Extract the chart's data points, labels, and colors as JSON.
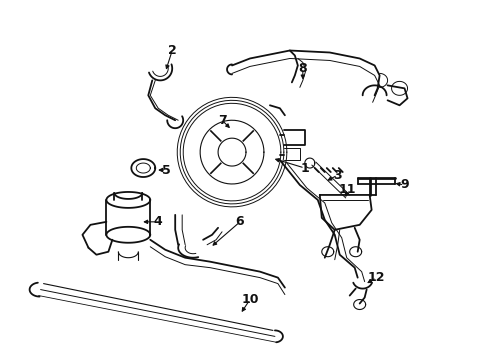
{
  "background_color": "#ffffff",
  "line_color": "#111111",
  "fig_width": 4.89,
  "fig_height": 3.6,
  "dpi": 100,
  "label_fontsize": 9,
  "lw_main": 1.3,
  "lw_thin": 0.8,
  "lw_thick": 2.0
}
